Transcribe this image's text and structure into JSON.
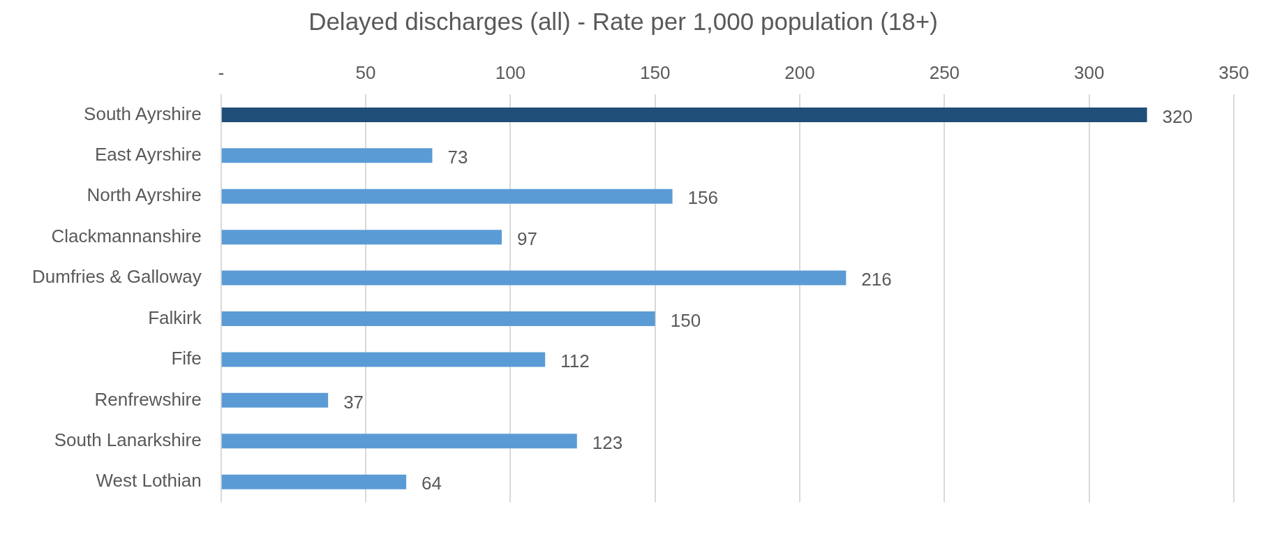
{
  "chart_data": {
    "type": "bar",
    "orientation": "horizontal",
    "title": "Delayed discharges (all) - Rate per 1,000 population (18+)",
    "categories": [
      "South Ayrshire",
      "East Ayrshire",
      "North Ayrshire",
      "Clackmannanshire",
      "Dumfries & Galloway",
      "Falkirk",
      "Fife",
      "Renfrewshire",
      "South Lanarkshire",
      "West Lothian"
    ],
    "values": [
      320,
      73,
      156,
      97,
      216,
      150,
      112,
      37,
      123,
      64
    ],
    "colors": [
      "#1f4e79",
      "#5b9bd5",
      "#5b9bd5",
      "#5b9bd5",
      "#5b9bd5",
      "#5b9bd5",
      "#5b9bd5",
      "#5b9bd5",
      "#5b9bd5",
      "#5b9bd5"
    ],
    "xlim": [
      0,
      350
    ],
    "xticks": [
      {
        "value": 0,
        "label": "-"
      },
      50,
      100,
      150,
      200,
      250,
      300,
      350
    ],
    "grid": "x",
    "data_labels": true,
    "legend": false
  }
}
